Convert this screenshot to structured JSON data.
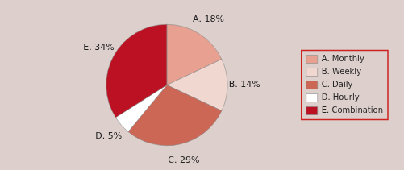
{
  "chart_data": {
    "type": "pie",
    "categories": [
      "A. Monthly",
      "B. Weekly",
      "C. Daily",
      "D. Hourly",
      "E. Combination"
    ],
    "values": [
      18,
      14,
      29,
      5,
      34
    ],
    "value_labels": [
      "A. 18%",
      "B. 14%",
      "C. 29%",
      "D. 5%",
      "E. 34%"
    ],
    "colors": [
      "#e8a090",
      "#f0d8d0",
      "#cc6655",
      "#ffffff",
      "#bb1122"
    ],
    "data_labels": true,
    "legend": "right"
  }
}
